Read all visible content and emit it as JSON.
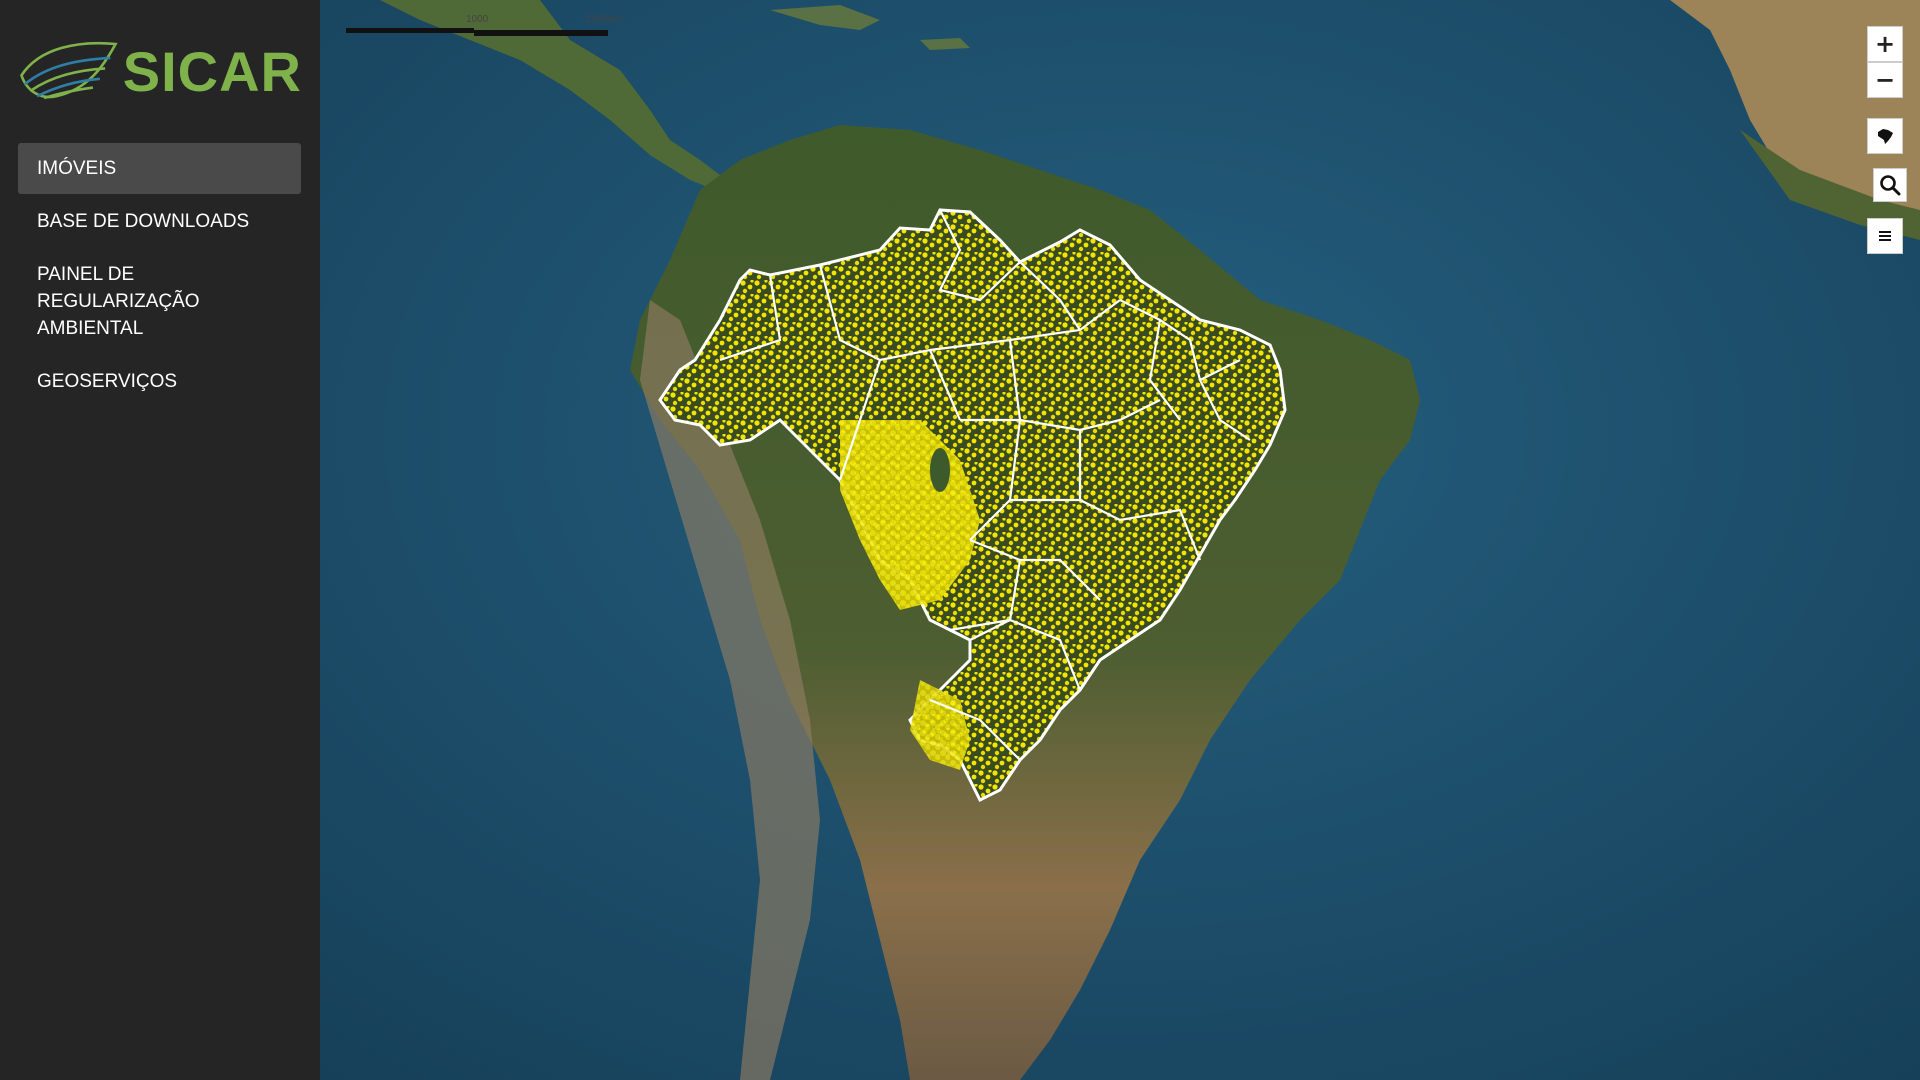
{
  "logo": {
    "text": "SICAR",
    "colors": {
      "green": "#7fb24a",
      "blue": "#2e7fa6"
    }
  },
  "nav": {
    "items": [
      {
        "label": "IMÓVEIS",
        "active": true
      },
      {
        "label": "BASE DE DOWNLOADS",
        "active": false
      },
      {
        "label": "PAINEL DE REGULARIZAÇÃO AMBIENTAL",
        "active": false
      },
      {
        "label": "GEOSERVIÇOS",
        "active": false
      }
    ]
  },
  "map": {
    "scale": {
      "labels": [
        "1000",
        "2000km"
      ]
    },
    "controls": {
      "zoom_in": "+",
      "zoom_out": "−",
      "brazil_icon": "brazil-map-icon",
      "search_icon": "search-icon",
      "layers_icon": "menu-icon"
    },
    "overlay_color": "#f2e600",
    "border_color": "#ffffff"
  }
}
